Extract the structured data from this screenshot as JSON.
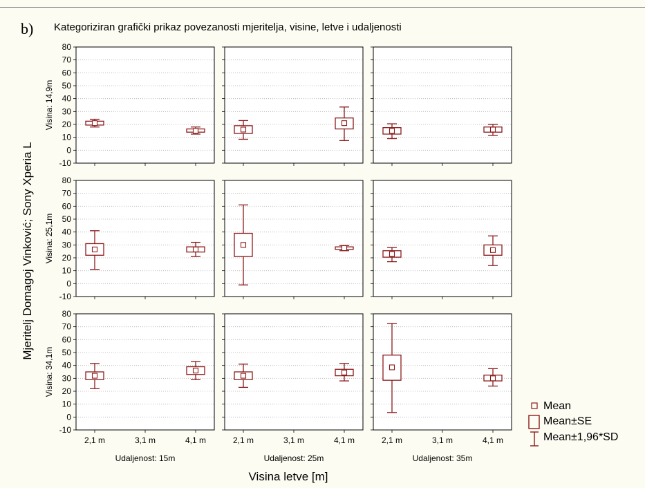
{
  "chart_data": {
    "type": "box",
    "panel_letter": "b)",
    "title": "Kategoriziran grafički prikaz povezanosti mjeritelja, visine, letve i udaljenosti",
    "xlabel": "Visina letve [m]",
    "ylabel": "Mjeritelj Domagoj Vinković; Sony Xperia L",
    "ylim": [
      -10,
      80
    ],
    "y_ticks": [
      "80",
      "70",
      "60",
      "50",
      "40",
      "30",
      "20",
      "10",
      "0",
      "-10"
    ],
    "x_categories": [
      "2,1 m",
      "3,1 m",
      "4,1 m"
    ],
    "columns": [
      "Udaljenost: 15m",
      "Udaljenost: 25m",
      "Udaljenost: 35m"
    ],
    "rows": [
      "Visina: 14,9m",
      "Visina: 25,1m",
      "Visina: 34,1m"
    ],
    "grid": true,
    "legend_position": "bottom-right",
    "legend": [
      "Mean",
      "Mean±SE",
      "Mean±1,96*SD"
    ],
    "colors": {
      "series": "#8b1a1a",
      "grid": "#b0b0b0",
      "background": "#fdfcf2"
    },
    "panels": [
      {
        "row": 0,
        "col": 0,
        "boxes": [
          {
            "x": "2,1 m",
            "mean": 21,
            "se_low": 19.5,
            "se_high": 22.5,
            "sd_low": 18,
            "sd_high": 24
          },
          {
            "x": "4,1 m",
            "mean": 15,
            "se_low": 14,
            "se_high": 16.5,
            "sd_low": 12.5,
            "sd_high": 18
          }
        ]
      },
      {
        "row": 0,
        "col": 1,
        "boxes": [
          {
            "x": "2,1 m",
            "mean": 16,
            "se_low": 13,
            "se_high": 19,
            "sd_low": 8.5,
            "sd_high": 23
          },
          {
            "x": "4,1 m",
            "mean": 21,
            "se_low": 16.5,
            "se_high": 25,
            "sd_low": 7.5,
            "sd_high": 33.5
          }
        ]
      },
      {
        "row": 0,
        "col": 2,
        "boxes": [
          {
            "x": "2,1 m",
            "mean": 15,
            "se_low": 12.5,
            "se_high": 17.5,
            "sd_low": 9,
            "sd_high": 20.5
          },
          {
            "x": "4,1 m",
            "mean": 16,
            "se_low": 14,
            "se_high": 18,
            "sd_low": 11.5,
            "sd_high": 20
          }
        ]
      },
      {
        "row": 1,
        "col": 0,
        "boxes": [
          {
            "x": "2,1 m",
            "mean": 26.5,
            "se_low": 22,
            "se_high": 31,
            "sd_low": 11,
            "sd_high": 41
          },
          {
            "x": "4,1 m",
            "mean": 26.5,
            "se_low": 24.5,
            "se_high": 28.5,
            "sd_low": 21,
            "sd_high": 32
          }
        ]
      },
      {
        "row": 1,
        "col": 1,
        "boxes": [
          {
            "x": "2,1 m",
            "mean": 30,
            "se_low": 21,
            "se_high": 39,
            "sd_low": -1,
            "sd_high": 61
          },
          {
            "x": "4,1 m",
            "mean": 27.5,
            "se_low": 26.5,
            "se_high": 28.5,
            "sd_low": 25.5,
            "sd_high": 29.5
          }
        ]
      },
      {
        "row": 1,
        "col": 2,
        "boxes": [
          {
            "x": "2,1 m",
            "mean": 23,
            "se_low": 20.5,
            "se_high": 25.5,
            "sd_low": 17,
            "sd_high": 28
          },
          {
            "x": "4,1 m",
            "mean": 26,
            "se_low": 22,
            "se_high": 30,
            "sd_low": 14,
            "sd_high": 37
          }
        ]
      },
      {
        "row": 2,
        "col": 0,
        "boxes": [
          {
            "x": "2,1 m",
            "mean": 32,
            "se_low": 29,
            "se_high": 35,
            "sd_low": 22,
            "sd_high": 41.5
          },
          {
            "x": "4,1 m",
            "mean": 36,
            "se_low": 33,
            "se_high": 39,
            "sd_low": 29,
            "sd_high": 43
          }
        ]
      },
      {
        "row": 2,
        "col": 1,
        "boxes": [
          {
            "x": "2,1 m",
            "mean": 32,
            "se_low": 29,
            "se_high": 35,
            "sd_low": 23,
            "sd_high": 41
          },
          {
            "x": "4,1 m",
            "mean": 34.5,
            "se_low": 32,
            "se_high": 37,
            "sd_low": 28,
            "sd_high": 41.5
          }
        ]
      },
      {
        "row": 2,
        "col": 2,
        "boxes": [
          {
            "x": "2,1 m",
            "mean": 38.5,
            "se_low": 28.5,
            "se_high": 48,
            "sd_low": 3.5,
            "sd_high": 72.5
          },
          {
            "x": "4,1 m",
            "mean": 30,
            "se_low": 28,
            "se_high": 32.5,
            "sd_low": 24,
            "sd_high": 37.5
          }
        ]
      }
    ]
  }
}
